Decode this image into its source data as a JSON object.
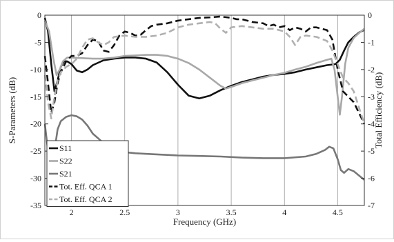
{
  "chart_data": {
    "type": "line",
    "xlabel": "Frequency (GHz)",
    "ylabel": "S-Parameters (dB)",
    "y2label": "Total Efficiency (dB)",
    "xlim": [
      1.75,
      4.75
    ],
    "ylim": [
      -35,
      0
    ],
    "y2lim": [
      -7,
      0
    ],
    "xticks": [
      "2",
      "2.5",
      "3",
      "3.5",
      "4",
      "4.5"
    ],
    "xtick_values": [
      2,
      2.5,
      3,
      3.5,
      4,
      4.5
    ],
    "yticks": [
      "0",
      "-5",
      "-10",
      "-15",
      "-20",
      "-25",
      "-30",
      "-35"
    ],
    "ytick_values": [
      0,
      -5,
      -10,
      -15,
      -20,
      -25,
      -30,
      -35
    ],
    "y2ticks": [
      "0",
      "-1",
      "-2",
      "-3",
      "-4",
      "-5",
      "-6",
      "-7"
    ],
    "y2tick_values": [
      0,
      -1,
      -2,
      -3,
      -4,
      -5,
      -6,
      -7
    ],
    "grid": "vertical",
    "legend_position": "bottom-left",
    "series": [
      {
        "name": "S11",
        "axis": "left",
        "color": "#111111",
        "dash": "solid",
        "points": [
          [
            1.75,
            -0.5
          ],
          [
            1.78,
            -3
          ],
          [
            1.81,
            -9
          ],
          [
            1.84,
            -14
          ],
          [
            1.87,
            -12
          ],
          [
            1.9,
            -9.5
          ],
          [
            1.93,
            -8.5
          ],
          [
            1.96,
            -8.5
          ],
          [
            2.0,
            -9
          ],
          [
            2.05,
            -10.2
          ],
          [
            2.1,
            -10.5
          ],
          [
            2.15,
            -10
          ],
          [
            2.2,
            -9.2
          ],
          [
            2.3,
            -8.3
          ],
          [
            2.4,
            -8
          ],
          [
            2.5,
            -7.8
          ],
          [
            2.6,
            -7.8
          ],
          [
            2.7,
            -8
          ],
          [
            2.8,
            -8.7
          ],
          [
            2.9,
            -10.5
          ],
          [
            3.0,
            -12.8
          ],
          [
            3.1,
            -14.8
          ],
          [
            3.2,
            -15.3
          ],
          [
            3.3,
            -14.8
          ],
          [
            3.4,
            -13.8
          ],
          [
            3.5,
            -13
          ],
          [
            3.6,
            -12.3
          ],
          [
            3.7,
            -11.8
          ],
          [
            3.8,
            -11.3
          ],
          [
            3.9,
            -11
          ],
          [
            4.0,
            -10.8
          ],
          [
            4.1,
            -10.5
          ],
          [
            4.2,
            -10
          ],
          [
            4.3,
            -9.6
          ],
          [
            4.4,
            -9.2
          ],
          [
            4.48,
            -9
          ],
          [
            4.52,
            -8.2
          ],
          [
            4.56,
            -6.5
          ],
          [
            4.6,
            -5
          ],
          [
            4.65,
            -4
          ],
          [
            4.7,
            -3.2
          ],
          [
            4.75,
            -2.7
          ]
        ]
      },
      {
        "name": "S22",
        "axis": "left",
        "color": "#a8a8a8",
        "dash": "solid",
        "points": [
          [
            1.75,
            -1
          ],
          [
            1.79,
            -3
          ],
          [
            1.83,
            -8
          ],
          [
            1.86,
            -11
          ],
          [
            1.89,
            -10
          ],
          [
            1.92,
            -8.5
          ],
          [
            1.96,
            -7.8
          ],
          [
            2.0,
            -7.8
          ],
          [
            2.1,
            -7.9
          ],
          [
            2.2,
            -8
          ],
          [
            2.3,
            -8
          ],
          [
            2.4,
            -7.8
          ],
          [
            2.5,
            -7.5
          ],
          [
            2.6,
            -7.4
          ],
          [
            2.7,
            -7.3
          ],
          [
            2.8,
            -7.3
          ],
          [
            2.9,
            -7.5
          ],
          [
            3.0,
            -8
          ],
          [
            3.1,
            -8.8
          ],
          [
            3.2,
            -10
          ],
          [
            3.3,
            -11.5
          ],
          [
            3.4,
            -13
          ],
          [
            3.45,
            -13.5
          ],
          [
            3.5,
            -13.2
          ],
          [
            3.6,
            -12.5
          ],
          [
            3.7,
            -12
          ],
          [
            3.8,
            -11.5
          ],
          [
            3.9,
            -11
          ],
          [
            4.0,
            -10.6
          ],
          [
            4.1,
            -10
          ],
          [
            4.2,
            -9.5
          ],
          [
            4.3,
            -8.8
          ],
          [
            4.4,
            -8.2
          ],
          [
            4.44,
            -8
          ],
          [
            4.47,
            -10
          ],
          [
            4.5,
            -15
          ],
          [
            4.52,
            -18.3
          ],
          [
            4.54,
            -15
          ],
          [
            4.57,
            -9
          ],
          [
            4.6,
            -6
          ],
          [
            4.65,
            -4.2
          ],
          [
            4.7,
            -3.3
          ],
          [
            4.75,
            -2.5
          ]
        ]
      },
      {
        "name": "S21",
        "axis": "left",
        "color": "#777777",
        "dash": "solid",
        "points": [
          [
            1.75,
            -20
          ],
          [
            1.78,
            -25
          ],
          [
            1.81,
            -27
          ],
          [
            1.84,
            -25
          ],
          [
            1.87,
            -21
          ],
          [
            1.9,
            -19.5
          ],
          [
            1.95,
            -18.7
          ],
          [
            2.0,
            -18.4
          ],
          [
            2.05,
            -18.6
          ],
          [
            2.1,
            -19.2
          ],
          [
            2.15,
            -20.3
          ],
          [
            2.2,
            -21.8
          ],
          [
            2.3,
            -23.5
          ],
          [
            2.4,
            -24.7
          ],
          [
            2.5,
            -25.2
          ],
          [
            2.6,
            -25.4
          ],
          [
            2.8,
            -25.6
          ],
          [
            3.0,
            -25.8
          ],
          [
            3.2,
            -25.9
          ],
          [
            3.4,
            -26
          ],
          [
            3.6,
            -26.2
          ],
          [
            3.8,
            -26.3
          ],
          [
            4.0,
            -26.3
          ],
          [
            4.2,
            -26
          ],
          [
            4.3,
            -25.5
          ],
          [
            4.38,
            -24.8
          ],
          [
            4.42,
            -24.2
          ],
          [
            4.46,
            -24.5
          ],
          [
            4.5,
            -26.5
          ],
          [
            4.53,
            -28.5
          ],
          [
            4.56,
            -29
          ],
          [
            4.6,
            -28.3
          ],
          [
            4.65,
            -28.7
          ],
          [
            4.7,
            -29.5
          ],
          [
            4.75,
            -30.3
          ]
        ]
      },
      {
        "name": "Tot. Eff. QCA 1",
        "axis": "right",
        "color": "#111111",
        "dash": "dashed",
        "points": [
          [
            1.75,
            -1.5
          ],
          [
            1.78,
            -2.5
          ],
          [
            1.81,
            -3.6
          ],
          [
            1.84,
            -3.2
          ],
          [
            1.87,
            -2.5
          ],
          [
            1.9,
            -2.1
          ],
          [
            1.95,
            -1.7
          ],
          [
            2.0,
            -1.5
          ],
          [
            2.05,
            -1.5
          ],
          [
            2.1,
            -1.4
          ],
          [
            2.15,
            -1.1
          ],
          [
            2.2,
            -0.9
          ],
          [
            2.25,
            -0.95
          ],
          [
            2.3,
            -1.3
          ],
          [
            2.35,
            -1.35
          ],
          [
            2.4,
            -1.1
          ],
          [
            2.45,
            -0.75
          ],
          [
            2.5,
            -0.6
          ],
          [
            2.55,
            -0.65
          ],
          [
            2.6,
            -0.75
          ],
          [
            2.65,
            -0.72
          ],
          [
            2.7,
            -0.55
          ],
          [
            2.75,
            -0.4
          ],
          [
            2.8,
            -0.35
          ],
          [
            2.9,
            -0.3
          ],
          [
            3.0,
            -0.2
          ],
          [
            3.1,
            -0.15
          ],
          [
            3.2,
            -0.1
          ],
          [
            3.3,
            -0.08
          ],
          [
            3.4,
            -0.05
          ],
          [
            3.5,
            -0.1
          ],
          [
            3.55,
            -0.15
          ],
          [
            3.6,
            -0.15
          ],
          [
            3.7,
            -0.25
          ],
          [
            3.8,
            -0.3
          ],
          [
            3.85,
            -0.4
          ],
          [
            3.9,
            -0.35
          ],
          [
            3.95,
            -0.45
          ],
          [
            4.0,
            -0.4
          ],
          [
            4.05,
            -0.55
          ],
          [
            4.1,
            -0.45
          ],
          [
            4.15,
            -0.5
          ],
          [
            4.2,
            -0.6
          ],
          [
            4.25,
            -0.45
          ],
          [
            4.3,
            -0.45
          ],
          [
            4.35,
            -0.5
          ],
          [
            4.4,
            -0.55
          ],
          [
            4.45,
            -0.9
          ],
          [
            4.5,
            -2.0
          ],
          [
            4.55,
            -2.8
          ],
          [
            4.6,
            -3.0
          ],
          [
            4.65,
            -3.2
          ],
          [
            4.7,
            -3.6
          ],
          [
            4.75,
            -4.0
          ]
        ]
      },
      {
        "name": "Tot. Eff. QCA 2",
        "axis": "right",
        "color": "#b0b0b0",
        "dash": "dashed",
        "points": [
          [
            1.75,
            -2.2
          ],
          [
            1.78,
            -3.2
          ],
          [
            1.81,
            -3.8
          ],
          [
            1.84,
            -3.0
          ],
          [
            1.87,
            -2.4
          ],
          [
            1.9,
            -2.1
          ],
          [
            1.95,
            -1.9
          ],
          [
            2.0,
            -1.8
          ],
          [
            2.05,
            -1.6
          ],
          [
            2.1,
            -1.2
          ],
          [
            2.15,
            -0.9
          ],
          [
            2.2,
            -0.85
          ],
          [
            2.25,
            -1.0
          ],
          [
            2.3,
            -1.1
          ],
          [
            2.35,
            -1.0
          ],
          [
            2.4,
            -0.8
          ],
          [
            2.5,
            -0.75
          ],
          [
            2.6,
            -0.8
          ],
          [
            2.7,
            -0.8
          ],
          [
            2.8,
            -0.75
          ],
          [
            2.9,
            -0.65
          ],
          [
            3.0,
            -0.45
          ],
          [
            3.1,
            -0.35
          ],
          [
            3.2,
            -0.3
          ],
          [
            3.3,
            -0.25
          ],
          [
            3.35,
            -0.3
          ],
          [
            3.4,
            -0.5
          ],
          [
            3.45,
            -0.65
          ],
          [
            3.5,
            -0.45
          ],
          [
            3.6,
            -0.4
          ],
          [
            3.7,
            -0.45
          ],
          [
            3.8,
            -0.5
          ],
          [
            3.9,
            -0.5
          ],
          [
            4.0,
            -0.6
          ],
          [
            4.05,
            -0.8
          ],
          [
            4.1,
            -1.1
          ],
          [
            4.15,
            -0.8
          ],
          [
            4.2,
            -0.75
          ],
          [
            4.3,
            -0.8
          ],
          [
            4.4,
            -0.95
          ],
          [
            4.45,
            -1.3
          ],
          [
            4.5,
            -1.8
          ],
          [
            4.55,
            -2.3
          ],
          [
            4.6,
            -2.5
          ],
          [
            4.65,
            -2.8
          ],
          [
            4.7,
            -3.4
          ],
          [
            4.75,
            -4.0
          ]
        ]
      }
    ]
  }
}
